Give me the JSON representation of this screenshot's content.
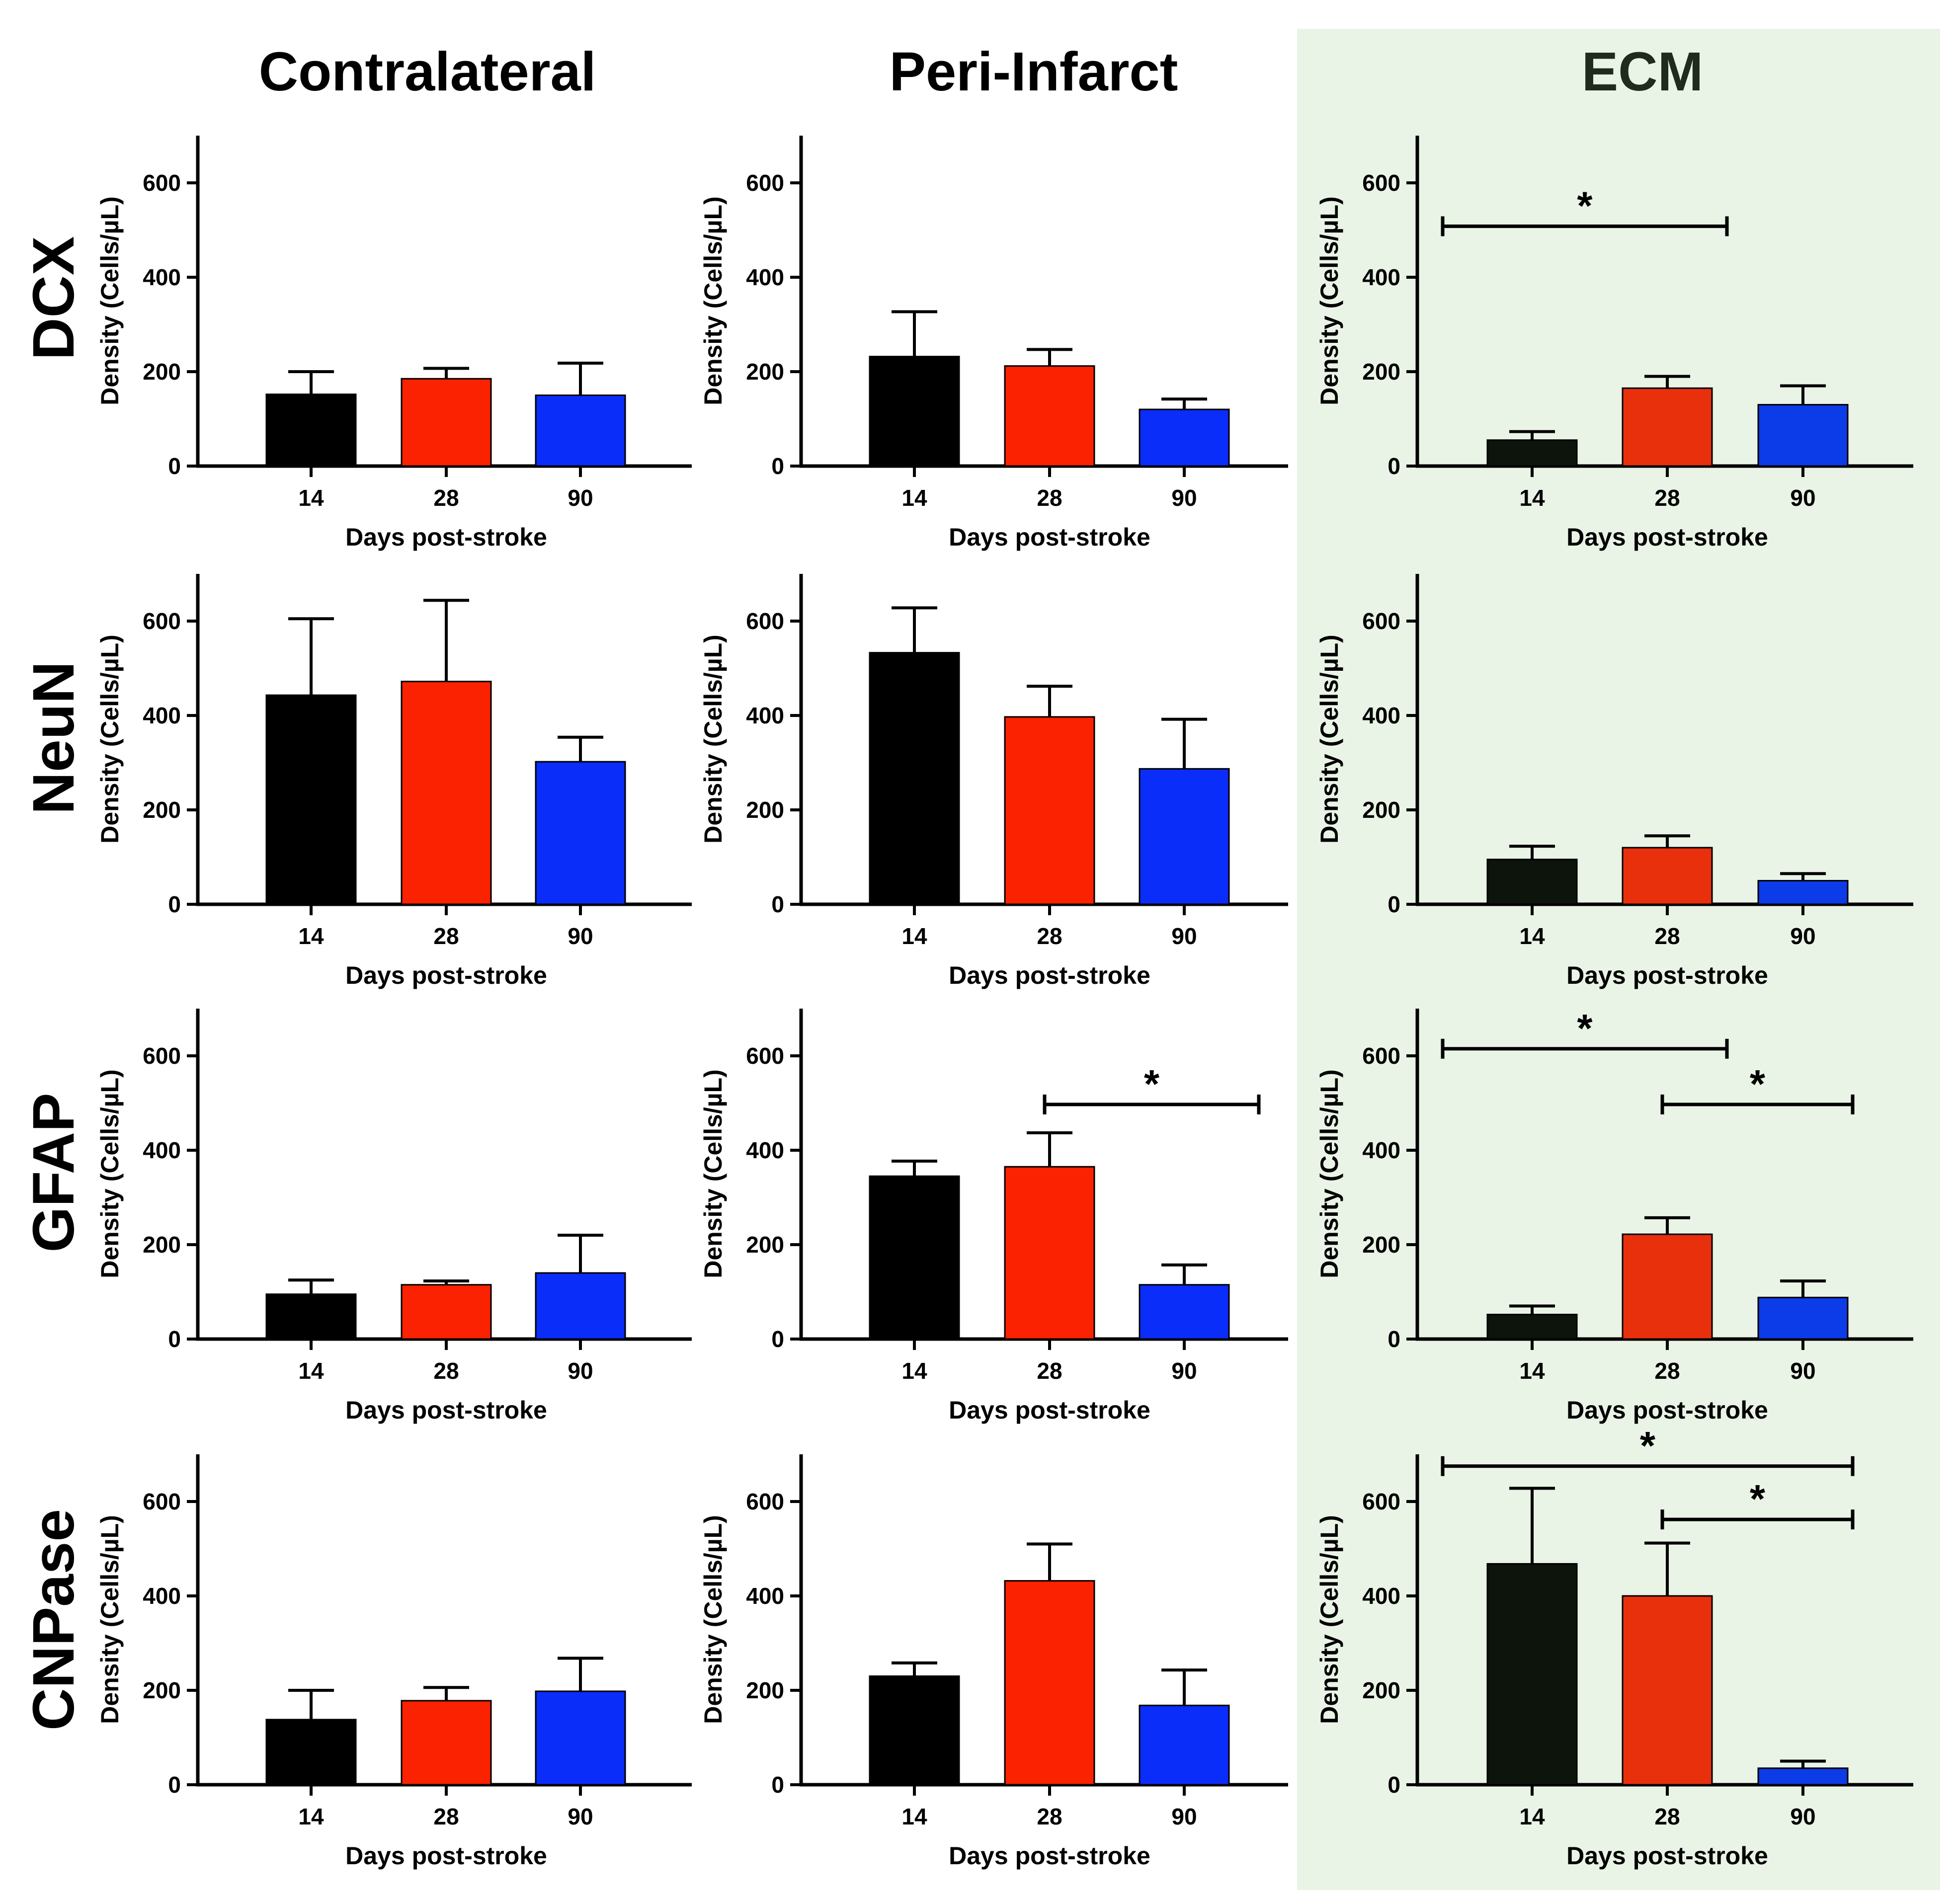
{
  "figure": {
    "columns": [
      "Contralateral",
      "Peri-Infarct",
      "ECM"
    ],
    "rows": [
      "DCX",
      "NeuN",
      "GFAP",
      "CNPase"
    ],
    "colors": {
      "day14": "#000000",
      "day28": "#fa2200",
      "day90": "#0a2dfa",
      "ecm_day14": "#0c140b",
      "ecm_day28": "#e8300c",
      "ecm_day90": "#0c3be8",
      "ecm_background": "#eaf4e6",
      "ecm_title": "#1f2b1c"
    }
  },
  "chart_data": [
    {
      "type": "bar",
      "row": "DCX",
      "column": "Contralateral",
      "categories": [
        "14",
        "28",
        "90"
      ],
      "values": [
        152,
        185,
        150
      ],
      "errors": [
        48,
        22,
        68
      ],
      "ylabel": "Density (Cells/µL)",
      "xlabel": "Days post-stroke",
      "ylim": [
        0,
        700
      ],
      "yticks": [
        0,
        200,
        400,
        600
      ],
      "significance": []
    },
    {
      "type": "bar",
      "row": "DCX",
      "column": "Peri-Infarct",
      "categories": [
        "14",
        "28",
        "90"
      ],
      "values": [
        232,
        212,
        120
      ],
      "errors": [
        95,
        35,
        22
      ],
      "ylabel": "Density (Cells/µL)",
      "xlabel": "Days post-stroke",
      "ylim": [
        0,
        700
      ],
      "yticks": [
        0,
        200,
        400,
        600
      ],
      "significance": []
    },
    {
      "type": "bar",
      "row": "DCX",
      "column": "ECM",
      "categories": [
        "14",
        "28",
        "90"
      ],
      "values": [
        55,
        165,
        130
      ],
      "errors": [
        18,
        25,
        40
      ],
      "ylabel": "Density (Cells/µL)",
      "xlabel": "Days post-stroke",
      "ylim": [
        0,
        700
      ],
      "yticks": [
        0,
        200,
        400,
        600
      ],
      "significance": [
        {
          "from": "14",
          "to": "28",
          "y": 508,
          "label": "*"
        }
      ]
    },
    {
      "type": "bar",
      "row": "NeuN",
      "column": "Contralateral",
      "categories": [
        "14",
        "28",
        "90"
      ],
      "values": [
        443,
        472,
        302
      ],
      "errors": [
        162,
        172,
        52
      ],
      "ylabel": "Density (Cells/µL)",
      "xlabel": "Days post-stroke",
      "ylim": [
        0,
        700
      ],
      "yticks": [
        0,
        200,
        400,
        600
      ],
      "significance": []
    },
    {
      "type": "bar",
      "row": "NeuN",
      "column": "Peri-Infarct",
      "categories": [
        "14",
        "28",
        "90"
      ],
      "values": [
        533,
        397,
        287
      ],
      "errors": [
        95,
        65,
        105
      ],
      "ylabel": "Density (Cells/µL)",
      "xlabel": "Days post-stroke",
      "ylim": [
        0,
        700
      ],
      "yticks": [
        0,
        200,
        400,
        600
      ],
      "significance": []
    },
    {
      "type": "bar",
      "row": "NeuN",
      "column": "ECM",
      "categories": [
        "14",
        "28",
        "90"
      ],
      "values": [
        95,
        120,
        50
      ],
      "errors": [
        28,
        25,
        15
      ],
      "ylabel": "Density (Cells/µL)",
      "xlabel": "Days post-stroke",
      "ylim": [
        0,
        700
      ],
      "yticks": [
        0,
        200,
        400,
        600
      ],
      "significance": []
    },
    {
      "type": "bar",
      "row": "GFAP",
      "column": "Contralateral",
      "categories": [
        "14",
        "28",
        "90"
      ],
      "values": [
        95,
        115,
        140
      ],
      "errors": [
        30,
        8,
        80
      ],
      "ylabel": "Density (Cells/µL)",
      "xlabel": "Days post-stroke",
      "ylim": [
        0,
        700
      ],
      "yticks": [
        0,
        200,
        400,
        600
      ],
      "significance": []
    },
    {
      "type": "bar",
      "row": "GFAP",
      "column": "Peri-Infarct",
      "categories": [
        "14",
        "28",
        "90"
      ],
      "values": [
        345,
        365,
        115
      ],
      "errors": [
        32,
        72,
        42
      ],
      "ylabel": "Density (Cells/µL)",
      "xlabel": "Days post-stroke",
      "ylim": [
        0,
        700
      ],
      "yticks": [
        0,
        200,
        400,
        600
      ],
      "significance": [
        {
          "from": "28",
          "to": "90+",
          "y": 497,
          "label": "*"
        }
      ]
    },
    {
      "type": "bar",
      "row": "GFAP",
      "column": "ECM",
      "categories": [
        "14",
        "28",
        "90"
      ],
      "values": [
        52,
        222,
        88
      ],
      "errors": [
        18,
        35,
        35
      ],
      "ylabel": "Density (Cells/µL)",
      "xlabel": "Days post-stroke",
      "ylim": [
        0,
        700
      ],
      "yticks": [
        0,
        200,
        400,
        600
      ],
      "significance": [
        {
          "from": "14",
          "to": "28",
          "y": 615,
          "label": "*"
        },
        {
          "from": "28",
          "to": "90",
          "y": 497,
          "label": "*"
        }
      ]
    },
    {
      "type": "bar",
      "row": "CNPase",
      "column": "Contralateral",
      "categories": [
        "14",
        "28",
        "90"
      ],
      "values": [
        138,
        178,
        198
      ],
      "errors": [
        62,
        28,
        70
      ],
      "ylabel": "Density (Cells/µL)",
      "xlabel": "Days post-stroke",
      "ylim": [
        0,
        700
      ],
      "yticks": [
        0,
        200,
        400,
        600
      ],
      "significance": []
    },
    {
      "type": "bar",
      "row": "CNPase",
      "column": "Peri-Infarct",
      "categories": [
        "14",
        "28",
        "90"
      ],
      "values": [
        230,
        432,
        168
      ],
      "errors": [
        28,
        78,
        75
      ],
      "ylabel": "Density (Cells/µL)",
      "xlabel": "Days post-stroke",
      "ylim": [
        0,
        700
      ],
      "yticks": [
        0,
        200,
        400,
        600
      ],
      "significance": []
    },
    {
      "type": "bar",
      "row": "CNPase",
      "column": "ECM",
      "categories": [
        "14",
        "28",
        "90"
      ],
      "values": [
        468,
        400,
        35
      ],
      "errors": [
        160,
        112,
        15
      ],
      "ylabel": "Density (Cells/µL)",
      "xlabel": "Days post-stroke",
      "ylim": [
        0,
        700
      ],
      "yticks": [
        0,
        200,
        400,
        600
      ],
      "significance": [
        {
          "from": "14",
          "to": "90",
          "y": 675,
          "label": "*"
        },
        {
          "from": "28",
          "to": "90",
          "y": 562,
          "label": "*"
        }
      ]
    }
  ]
}
